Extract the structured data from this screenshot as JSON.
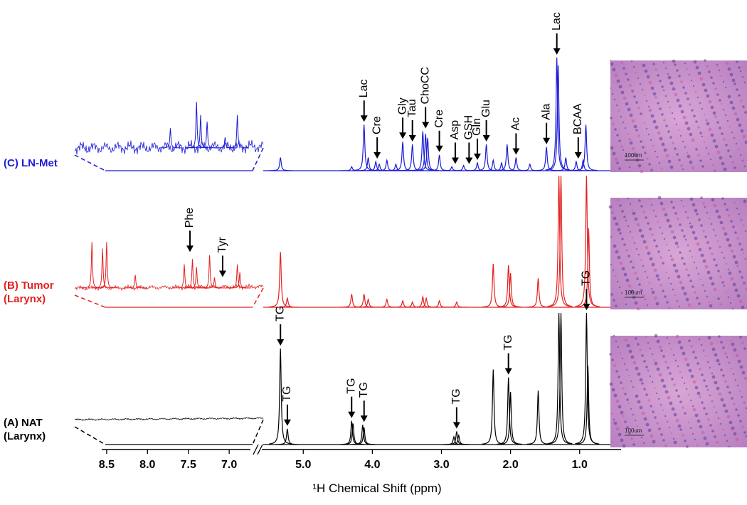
{
  "chart_data": {
    "type": "nmr-stack",
    "xlabel": "¹H Chemical Shift (ppm)",
    "xlim": [
      5.6,
      0.4
    ],
    "xticks": [
      {
        "value": 5.0,
        "label": "5.0"
      },
      {
        "value": 4.0,
        "label": "4.0"
      },
      {
        "value": 3.0,
        "label": "3.0"
      },
      {
        "value": 2.0,
        "label": "2.0"
      },
      {
        "value": 1.0,
        "label": "1.0"
      }
    ],
    "inset_xlim": [
      8.56,
      6.74
    ],
    "inset_xticks": [
      8.5,
      {
        "value": 8.0,
        "label": "8.0"
      },
      7.5,
      {
        "value": 7.0,
        "label": "7.0"
      }
    ],
    "series": [
      {
        "name": "(C) LN-Met",
        "color": "#1c1cd6",
        "x": [
          5.33,
          4.3,
          4.12,
          4.06,
          3.95,
          3.9,
          3.79,
          3.66,
          3.56,
          3.42,
          3.27,
          3.23,
          3.2,
          3.03,
          2.85,
          2.68,
          2.48,
          2.35,
          2.25,
          2.13,
          2.05,
          1.92,
          1.72,
          1.48,
          1.33,
          1.31,
          1.2,
          1.05,
          0.95,
          0.91
        ],
        "values": [
          10,
          3,
          35,
          10,
          7,
          5,
          8,
          5,
          22,
          20,
          30,
          28,
          25,
          12,
          3,
          4,
          6,
          20,
          8,
          6,
          20,
          10,
          5,
          18,
          86,
          80,
          10,
          7,
          8,
          35
        ],
        "inset_x": [
          7.72,
          7.4,
          7.35,
          7.27,
          7.05,
          6.9
        ],
        "inset_values": [
          15,
          35,
          25,
          20,
          8,
          25
        ],
        "annotations": [
          {
            "text": "Lac",
            "x": 4.12
          },
          {
            "text": "Cre",
            "x": 3.93
          },
          {
            "text": "Gly",
            "x": 3.56
          },
          {
            "text": "Tau",
            "x": 3.42
          },
          {
            "text": "ChoCC",
            "x": 3.23
          },
          {
            "text": "Cre",
            "x": 3.03
          },
          {
            "text": "Asp",
            "x": 2.8
          },
          {
            "text": "GSH",
            "x": 2.6
          },
          {
            "text": "Gln",
            "x": 2.48
          },
          {
            "text": "Glu",
            "x": 2.35
          },
          {
            "text": "Ac",
            "x": 1.92
          },
          {
            "text": "Ala",
            "x": 1.48
          },
          {
            "text": "Lac",
            "x": 1.33
          },
          {
            "text": "BCAA",
            "x": 1.02
          }
        ],
        "inset_annotations": []
      },
      {
        "name": "(B) Tumor (Larynx)",
        "color": "#e32020",
        "x": [
          5.33,
          5.23,
          4.3,
          4.12,
          4.06,
          3.79,
          3.56,
          3.42,
          3.27,
          3.22,
          3.03,
          2.78,
          2.25,
          2.03,
          2.0,
          1.6,
          1.3,
          1.27,
          0.9,
          0.87
        ],
        "values": [
          42,
          7,
          10,
          10,
          6,
          6,
          5,
          4,
          8,
          7,
          5,
          4,
          33,
          32,
          26,
          22,
          100,
          100,
          100,
          60
        ],
        "inset_x": [
          8.68,
          8.55,
          8.5,
          8.15,
          7.55,
          7.45,
          7.4,
          7.24,
          7.18,
          6.9,
          6.87
        ],
        "inset_values": [
          35,
          30,
          35,
          10,
          18,
          22,
          16,
          25,
          8,
          18,
          12
        ],
        "annotations": [],
        "inset_annotations": [
          {
            "text": "Phe",
            "x": 7.48
          },
          {
            "text": "Tyr",
            "x": 7.08
          }
        ]
      },
      {
        "name": "(A) NAT (Larynx)",
        "color": "#000000",
        "x": [
          5.33,
          5.23,
          4.3,
          4.28,
          4.14,
          4.12,
          2.82,
          2.78,
          2.75,
          2.25,
          2.03,
          2.0,
          1.6,
          1.3,
          1.27,
          0.9,
          0.88
        ],
        "values": [
          73,
          12,
          18,
          16,
          15,
          13,
          6,
          10,
          7,
          57,
          51,
          40,
          41,
          100,
          100,
          100,
          60
        ],
        "inset_x": [],
        "inset_values": [],
        "annotations": [
          {
            "text": "TG",
            "x": 5.33
          },
          {
            "text": "TG",
            "x": 5.23
          },
          {
            "text": "TG",
            "x": 4.3
          },
          {
            "text": "TG",
            "x": 4.12
          },
          {
            "text": "TG",
            "x": 2.78
          },
          {
            "text": "TG",
            "x": 2.03
          },
          {
            "text": "TG",
            "x": 0.9
          }
        ],
        "inset_annotations": []
      }
    ],
    "micrographs": [
      {
        "scale": "100um"
      },
      {
        "scale": "100um"
      },
      {
        "scale": "100um"
      }
    ]
  }
}
